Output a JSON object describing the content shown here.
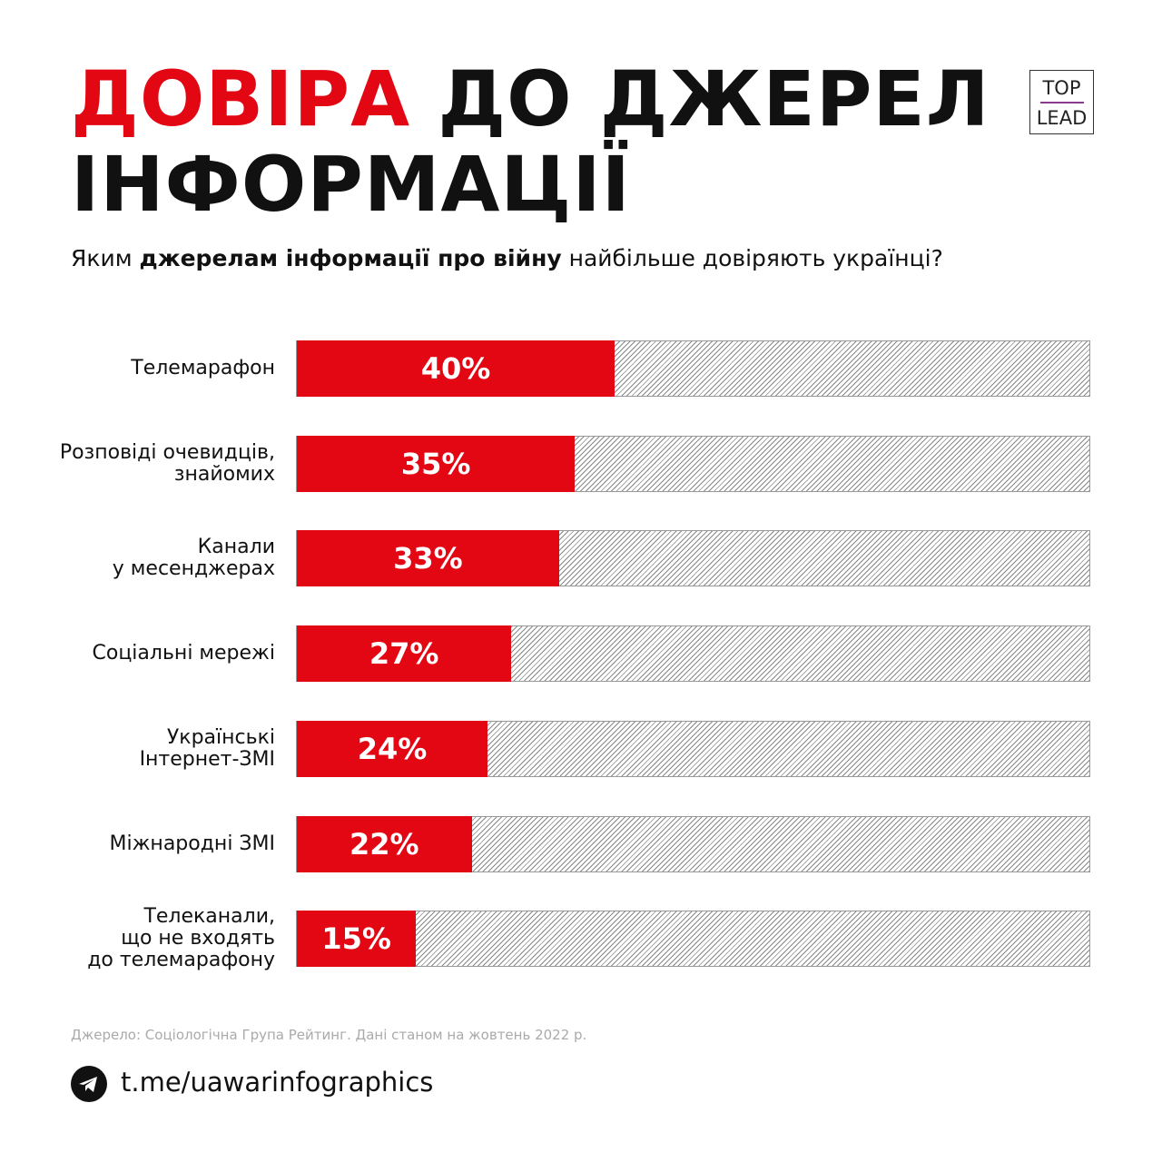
{
  "title": {
    "red": "ДОВІРА",
    "rest_line1": "ДО ДЖЕРЕЛ",
    "line2": "ІНФОРМАЦІЇ"
  },
  "logo": {
    "top": "TOP",
    "bottom": "LEAD"
  },
  "subtitle": {
    "pre": "Яким ",
    "bold": "джерелам інформації про війну",
    "post": " найбільше довіряють українці?"
  },
  "chart_data": {
    "type": "bar",
    "orientation": "horizontal",
    "categories": [
      "Телемарафон",
      "Розповіді очевидців, знайомих",
      "Канали у месенджерах",
      "Соціальні мережі",
      "Українські Інтернет-ЗМІ",
      "Міжнародні ЗМІ",
      "Телеканали, що не входять до телемарафону"
    ],
    "label_lines": [
      [
        "Телемарафон"
      ],
      [
        "Розповіді очевидців,",
        "знайомих"
      ],
      [
        "Канали",
        "у месенджерах"
      ],
      [
        "Соціальні мережі"
      ],
      [
        "Українські",
        "Інтернет-ЗМІ"
      ],
      [
        "Міжнародні ЗМІ"
      ],
      [
        "Телеканали,",
        "що не входять",
        "до телемарафону"
      ]
    ],
    "values": [
      40,
      35,
      33,
      27,
      24,
      22,
      15
    ],
    "value_labels": [
      "40%",
      "35%",
      "33%",
      "27%",
      "24%",
      "22%",
      "15%"
    ],
    "xlim": [
      0,
      100
    ],
    "colors": {
      "fill": "#e30613"
    }
  },
  "footer": {
    "source": "Джерело: Соціологічна Група Рейтинг. Дані станом на жовтень 2022 р.",
    "link": "t.me/uawarinfographics",
    "icon": "telegram-icon"
  }
}
